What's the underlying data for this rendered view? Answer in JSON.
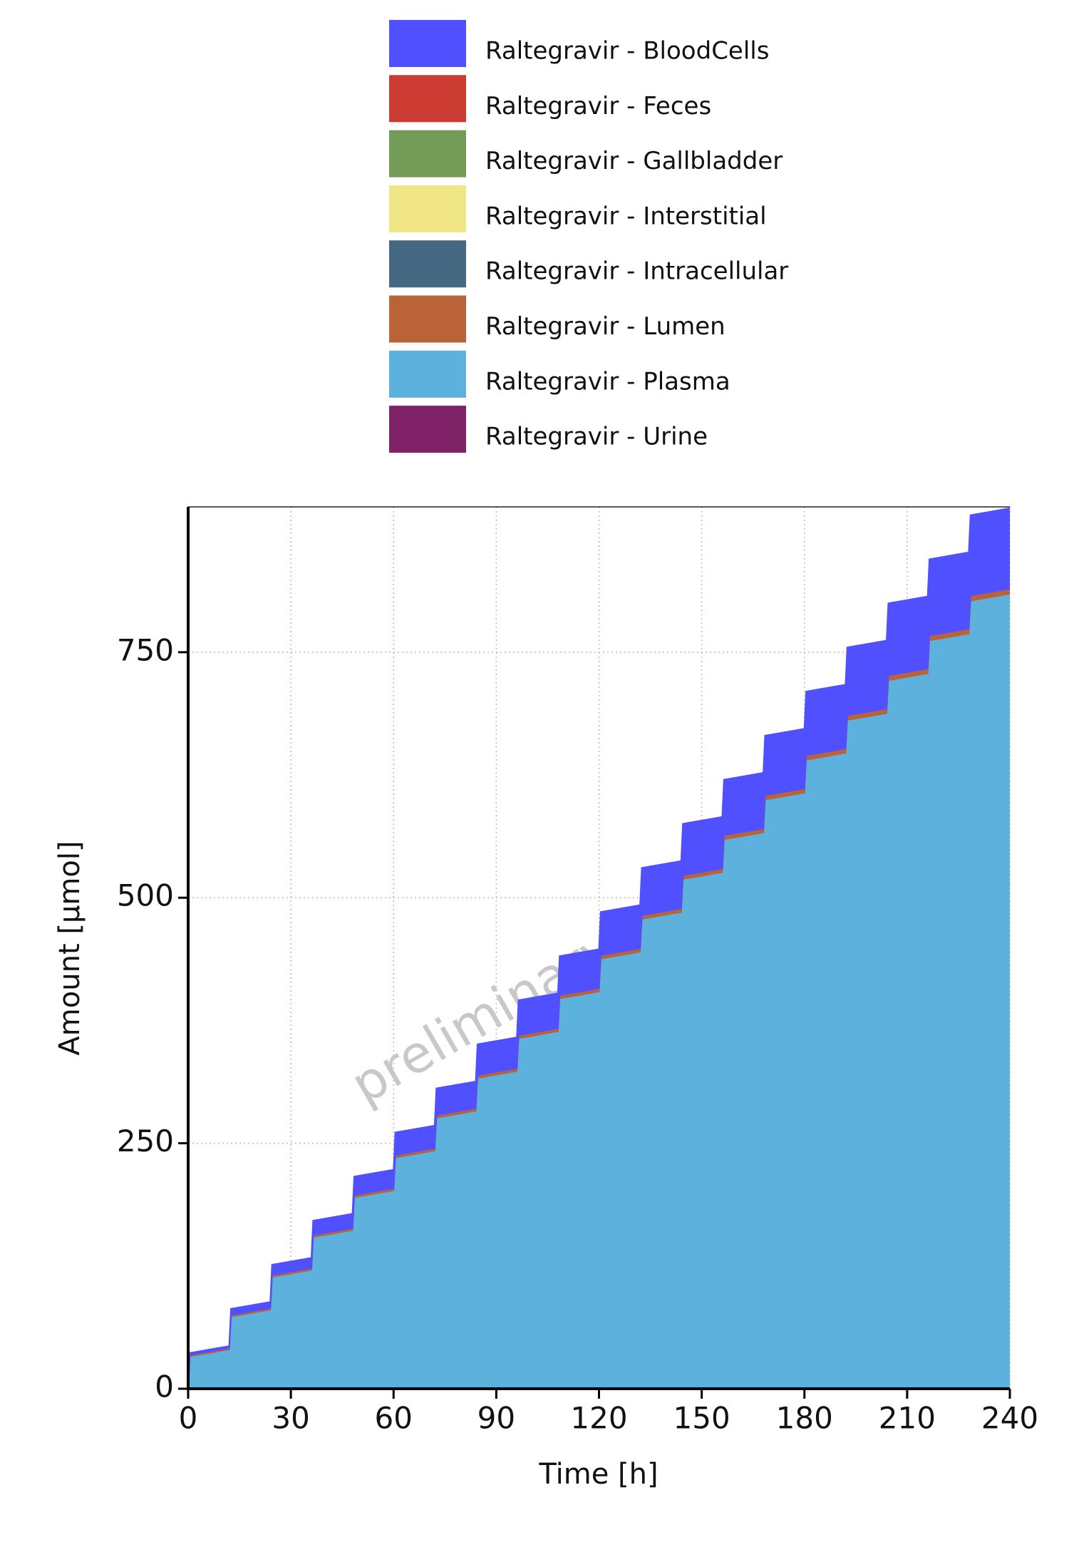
{
  "chart_data": {
    "type": "stacked_area",
    "watermark": "preliminary",
    "xlabel": "Time [h]",
    "ylabel": "Amount [µmol]",
    "x": [
      0,
      0.5,
      12,
      12.5,
      24,
      24.5,
      36,
      36.5,
      48,
      48.5,
      60,
      60.5,
      72,
      72.5,
      84,
      84.5,
      96,
      96.5,
      108,
      108.5,
      120,
      120.5,
      132,
      132.5,
      144,
      144.5,
      156,
      156.5,
      168,
      168.5,
      180,
      180.5,
      192,
      192.5,
      204,
      204.5,
      216,
      216.5,
      228,
      228.5,
      240
    ],
    "series": [
      {
        "name": "Raltegravir - BloodCells",
        "color": "#5050ff",
        "values": [
          0,
          2,
          2,
          6.2,
          6.2,
          10.4,
          10.4,
          14.6,
          14.6,
          18.8,
          18.8,
          23,
          23,
          27.2,
          27.2,
          31.4,
          31.4,
          35.6,
          35.6,
          39.8,
          39.8,
          44,
          44,
          48.2,
          48.2,
          52.4,
          52.4,
          56.6,
          56.6,
          60.8,
          60.8,
          65,
          65,
          69.2,
          69.2,
          73.4,
          73.4,
          77.6,
          77.6,
          81.8,
          81.8
        ]
      },
      {
        "name": "Raltegravir - Feces",
        "color": "#cd3c32",
        "values": [
          0,
          0,
          0,
          0,
          0,
          0,
          0,
          0,
          0,
          0,
          0,
          0,
          0,
          0,
          0,
          0,
          0,
          0,
          0,
          0,
          0,
          0,
          0,
          0,
          0,
          0,
          0,
          0,
          0,
          0,
          0,
          0,
          0,
          0,
          0,
          0,
          0,
          0,
          0,
          0,
          0
        ]
      },
      {
        "name": "Raltegravir - Gallbladder",
        "color": "#749b58",
        "values": [
          0,
          0,
          0,
          0,
          0,
          0,
          0,
          0,
          0,
          0,
          0,
          0,
          0,
          0,
          0,
          0,
          0,
          0,
          0,
          0,
          0,
          0,
          0,
          0,
          0,
          0,
          0,
          0,
          0,
          0,
          0,
          0,
          0,
          0,
          0,
          0,
          0,
          0,
          0,
          0,
          0
        ]
      },
      {
        "name": "Raltegravir - Interstitial",
        "color": "#f0e685",
        "values": [
          0,
          0,
          0,
          0,
          0,
          0,
          0,
          0,
          0,
          0,
          0,
          0,
          0,
          0,
          0,
          0,
          0,
          0,
          0,
          0,
          0,
          0,
          0,
          0,
          0,
          0,
          0,
          0,
          0,
          0,
          0,
          0,
          0,
          0,
          0,
          0,
          0,
          0,
          0,
          0,
          0
        ]
      },
      {
        "name": "Raltegravir - Intracellular",
        "color": "#466983",
        "values": [
          0,
          0,
          0,
          0,
          0,
          0,
          0,
          0,
          0,
          0,
          0,
          0,
          0,
          0,
          0,
          0,
          0,
          0,
          0,
          0,
          0,
          0,
          0,
          0,
          0,
          0,
          0,
          0,
          0,
          0,
          0,
          0,
          0,
          0,
          0,
          0,
          0,
          0,
          0,
          0,
          0
        ]
      },
      {
        "name": "Raltegravir - Lumen",
        "color": "#ba6338",
        "values": [
          0,
          1.5,
          1.5,
          1.7,
          1.7,
          1.9,
          1.9,
          2.1,
          2.1,
          2.3,
          2.3,
          2.5,
          2.5,
          2.7,
          2.7,
          2.9,
          2.9,
          3.1,
          3.1,
          3.3,
          3.3,
          3.5,
          3.5,
          3.7,
          3.7,
          3.9,
          3.9,
          4.1,
          4.1,
          4.3,
          4.3,
          4.5,
          4.5,
          4.7,
          4.7,
          4.9,
          4.9,
          5.1,
          5.1,
          5.3,
          5.3
        ]
      },
      {
        "name": "Raltegravir - Plasma",
        "color": "#5db1dd",
        "values": [
          0,
          33,
          40,
          73.5,
          80.5,
          114,
          121,
          154.5,
          161.5,
          195,
          202,
          235.5,
          242.5,
          276,
          283,
          316.5,
          323.5,
          357,
          364,
          397.5,
          404.5,
          438,
          445,
          478.5,
          485.5,
          519,
          526,
          559.5,
          566.5,
          600,
          607,
          640.5,
          647.5,
          681,
          688,
          721.5,
          728.5,
          762,
          769,
          802.5,
          809.5
        ]
      },
      {
        "name": "Raltegravir - Urine",
        "color": "#802268",
        "values": [
          0,
          0,
          0,
          0,
          0,
          0,
          0,
          0,
          0,
          0,
          0,
          0,
          0,
          0,
          0,
          0,
          0,
          0,
          0,
          0,
          0,
          0,
          0,
          0,
          0,
          0,
          0,
          0,
          0,
          0,
          0,
          0,
          0,
          0,
          0,
          0,
          0,
          0,
          0,
          0,
          0
        ]
      }
    ],
    "xlim": [
      0,
      240
    ],
    "xticks": [
      0,
      30,
      60,
      90,
      120,
      150,
      180,
      210,
      240
    ],
    "ylim": [
      0,
      898
    ],
    "yticks": [
      0,
      250,
      500,
      750
    ],
    "grid": true
  }
}
